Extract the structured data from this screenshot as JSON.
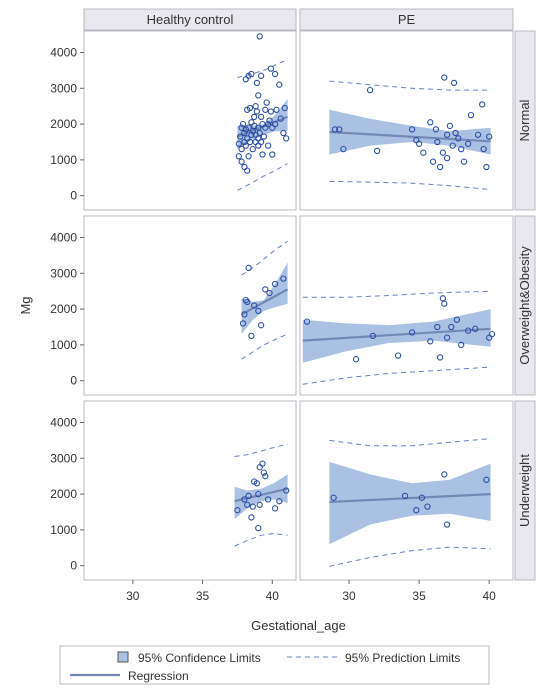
{
  "chart_data": {
    "type": "scatter",
    "layout": "panel grid (rows x columns)",
    "xlabel": "Gestational_age",
    "ylabel": "Mg",
    "xlim": [
      26.5,
      41.7
    ],
    "ylim": [
      -400,
      4600
    ],
    "x_ticks": [
      30,
      35,
      40
    ],
    "y_ticks": [
      0,
      1000,
      2000,
      3000,
      4000
    ],
    "columns": [
      "Healthy control",
      "PE"
    ],
    "rows": [
      "Normal",
      "Overweight&Obesity",
      "Underweight"
    ],
    "grid": false,
    "legend_position": "bottom",
    "colors": {
      "marker": "#2b4fa5",
      "regression": "#7488b5",
      "confidence_fill": "#aac1e3",
      "prediction": "#6680c7",
      "header_bg": "#e8e8ee",
      "panel_border": "#b9b9c3"
    },
    "legend": [
      {
        "type": "band",
        "label": "95% Confidence Limits"
      },
      {
        "type": "dashed",
        "label": "95% Prediction Limits"
      },
      {
        "type": "line",
        "label": "Regression"
      }
    ],
    "panels": [
      {
        "row": "Normal",
        "column": "Healthy control",
        "regression": {
          "x": [
            37.5,
            41.1
          ],
          "y": [
            1650,
            2200
          ]
        },
        "confidence": {
          "x": [
            37.5,
            38.5,
            39.4,
            40.2,
            41.1
          ],
          "lower": [
            1300,
            1550,
            1700,
            1800,
            1800
          ],
          "upper": [
            1950,
            1950,
            2000,
            2250,
            2700
          ]
        },
        "prediction": {
          "x": [
            37.5,
            38.5,
            39.4,
            40.2,
            41.1
          ],
          "lower": [
            150,
            350,
            550,
            700,
            900
          ],
          "upper": [
            3300,
            3400,
            3500,
            3650,
            3800
          ]
        },
        "points": [
          [
            37.6,
            1450
          ],
          [
            37.6,
            1100
          ],
          [
            37.7,
            1650
          ],
          [
            37.8,
            950
          ],
          [
            37.8,
            1900
          ],
          [
            37.8,
            1300
          ],
          [
            37.9,
            2000
          ],
          [
            38.0,
            800
          ],
          [
            38.0,
            1500
          ],
          [
            38.0,
            1750
          ],
          [
            38.1,
            1850
          ],
          [
            38.1,
            3250
          ],
          [
            38.1,
            1400
          ],
          [
            38.2,
            700
          ],
          [
            38.2,
            2400
          ],
          [
            38.2,
            1600
          ],
          [
            38.3,
            3350
          ],
          [
            38.3,
            1100
          ],
          [
            38.3,
            1900
          ],
          [
            38.4,
            1500
          ],
          [
            38.4,
            2450
          ],
          [
            38.5,
            1700
          ],
          [
            38.5,
            2050
          ],
          [
            38.5,
            3400
          ],
          [
            38.6,
            1300
          ],
          [
            38.6,
            1800
          ],
          [
            38.7,
            1950
          ],
          [
            38.7,
            2200
          ],
          [
            38.8,
            1500
          ],
          [
            38.8,
            1700
          ],
          [
            38.8,
            2500
          ],
          [
            38.9,
            2350
          ],
          [
            38.9,
            3150
          ],
          [
            39.0,
            1400
          ],
          [
            39.0,
            1600
          ],
          [
            39.0,
            1900
          ],
          [
            39.0,
            2800
          ],
          [
            39.1,
            4450
          ],
          [
            39.1,
            1750
          ],
          [
            39.2,
            1500
          ],
          [
            39.2,
            2200
          ],
          [
            39.2,
            3350
          ],
          [
            39.3,
            1150
          ],
          [
            39.3,
            2000
          ],
          [
            39.4,
            1650
          ],
          [
            39.5,
            2400
          ],
          [
            39.5,
            1900
          ],
          [
            39.6,
            2600
          ],
          [
            39.7,
            2000
          ],
          [
            39.7,
            1400
          ],
          [
            39.8,
            2100
          ],
          [
            39.9,
            2350
          ],
          [
            39.9,
            3550
          ],
          [
            40.0,
            1150
          ],
          [
            40.0,
            1900
          ],
          [
            40.2,
            2000
          ],
          [
            40.2,
            3400
          ],
          [
            40.3,
            2400
          ],
          [
            40.5,
            3100
          ],
          [
            40.6,
            2150
          ],
          [
            40.8,
            1750
          ],
          [
            40.9,
            2450
          ],
          [
            41.0,
            1600
          ]
        ]
      },
      {
        "row": "Normal",
        "column": "PE",
        "regression": {
          "x": [
            28.6,
            40.1
          ],
          "y": [
            1780,
            1520
          ]
        },
        "confidence": {
          "x": [
            28.6,
            31.5,
            34.5,
            37.2,
            40.1
          ],
          "lower": [
            1150,
            1400,
            1500,
            1400,
            1150
          ],
          "upper": [
            2400,
            2150,
            1950,
            1800,
            1900
          ]
        },
        "prediction": {
          "x": [
            28.6,
            31.5,
            34.5,
            37.2,
            40.1
          ],
          "lower": [
            400,
            380,
            350,
            280,
            170
          ],
          "upper": [
            3200,
            3100,
            3000,
            2950,
            2950
          ]
        },
        "points": [
          [
            29.0,
            1850
          ],
          [
            29.3,
            1850
          ],
          [
            29.6,
            1300
          ],
          [
            31.5,
            2950
          ],
          [
            32.0,
            1250
          ],
          [
            34.5,
            1850
          ],
          [
            34.8,
            1550
          ],
          [
            35.0,
            1450
          ],
          [
            35.3,
            1200
          ],
          [
            35.8,
            2050
          ],
          [
            36.0,
            950
          ],
          [
            36.2,
            1850
          ],
          [
            36.3,
            1500
          ],
          [
            36.5,
            800
          ],
          [
            36.7,
            1200
          ],
          [
            36.8,
            3300
          ],
          [
            37.0,
            1700
          ],
          [
            37.0,
            1050
          ],
          [
            37.2,
            1950
          ],
          [
            37.4,
            1400
          ],
          [
            37.5,
            3150
          ],
          [
            37.6,
            1750
          ],
          [
            37.8,
            1600
          ],
          [
            38.0,
            1300
          ],
          [
            38.2,
            950
          ],
          [
            38.5,
            1450
          ],
          [
            38.7,
            2250
          ],
          [
            39.2,
            1700
          ],
          [
            39.5,
            2550
          ],
          [
            39.6,
            1300
          ],
          [
            39.8,
            800
          ],
          [
            40.0,
            1650
          ]
        ]
      },
      {
        "row": "Overweight&Obesity",
        "column": "Healthy control",
        "regression": {
          "x": [
            37.8,
            41.1
          ],
          "y": [
            1850,
            2550
          ]
        },
        "confidence": {
          "x": [
            37.8,
            38.6,
            39.4,
            40.2,
            41.1
          ],
          "lower": [
            1300,
            1700,
            1950,
            2050,
            2150
          ],
          "upper": [
            2300,
            2200,
            2250,
            2700,
            3300
          ]
        },
        "prediction": {
          "x": [
            37.8,
            38.6,
            39.4,
            40.2,
            41.1
          ],
          "lower": [
            600,
            800,
            1000,
            1150,
            1300
          ],
          "upper": [
            2950,
            3150,
            3400,
            3650,
            3900
          ]
        },
        "points": [
          [
            37.9,
            1600
          ],
          [
            38.0,
            1850
          ],
          [
            38.1,
            2250
          ],
          [
            38.2,
            2200
          ],
          [
            38.3,
            3150
          ],
          [
            38.5,
            1250
          ],
          [
            38.7,
            2100
          ],
          [
            39.0,
            1950
          ],
          [
            39.2,
            1550
          ],
          [
            39.5,
            2550
          ],
          [
            39.8,
            2450
          ],
          [
            40.2,
            2700
          ],
          [
            40.8,
            2850
          ]
        ]
      },
      {
        "row": "Overweight&Obesity",
        "column": "PE",
        "regression": {
          "x": [
            26.7,
            40.1
          ],
          "y": [
            1120,
            1450
          ]
        },
        "confidence": {
          "x": [
            26.7,
            29.8,
            32.8,
            36.0,
            40.1
          ],
          "lower": [
            500,
            820,
            1050,
            1120,
            950
          ],
          "upper": [
            1700,
            1600,
            1550,
            1650,
            2000
          ]
        },
        "prediction": {
          "x": [
            26.7,
            29.8,
            32.8,
            36.0,
            40.1
          ],
          "lower": [
            -100,
            80,
            200,
            280,
            380
          ],
          "upper": [
            2330,
            2330,
            2380,
            2450,
            2500
          ]
        },
        "points": [
          [
            27.0,
            1650
          ],
          [
            30.5,
            600
          ],
          [
            31.7,
            1250
          ],
          [
            33.5,
            700
          ],
          [
            34.5,
            1350
          ],
          [
            35.8,
            1100
          ],
          [
            36.3,
            1500
          ],
          [
            36.5,
            650
          ],
          [
            36.7,
            2300
          ],
          [
            36.8,
            2150
          ],
          [
            37.0,
            1200
          ],
          [
            37.3,
            1500
          ],
          [
            37.7,
            1700
          ],
          [
            38.0,
            1000
          ],
          [
            38.5,
            1400
          ],
          [
            39.0,
            1450
          ],
          [
            40.0,
            1200
          ],
          [
            40.2,
            1300
          ]
        ]
      },
      {
        "row": "Underweight",
        "column": "Healthy control",
        "regression": {
          "x": [
            37.3,
            41.1
          ],
          "y": [
            1800,
            2150
          ]
        },
        "confidence": {
          "x": [
            37.3,
            38.2,
            39.2,
            40.1,
            41.1
          ],
          "lower": [
            1300,
            1600,
            1800,
            1850,
            1750
          ],
          "upper": [
            2200,
            2100,
            2150,
            2300,
            2550
          ]
        },
        "prediction": {
          "x": [
            37.3,
            38.2,
            39.2,
            40.1,
            41.1
          ],
          "lower": [
            550,
            700,
            850,
            900,
            850
          ],
          "upper": [
            3050,
            3100,
            3200,
            3300,
            3400
          ]
        },
        "points": [
          [
            37.5,
            1550
          ],
          [
            38.0,
            1850
          ],
          [
            38.2,
            1700
          ],
          [
            38.3,
            1950
          ],
          [
            38.5,
            1350
          ],
          [
            38.6,
            1650
          ],
          [
            38.7,
            2350
          ],
          [
            38.9,
            2300
          ],
          [
            39.0,
            1050
          ],
          [
            39.0,
            2000
          ],
          [
            39.1,
            1700
          ],
          [
            39.1,
            2750
          ],
          [
            39.3,
            2850
          ],
          [
            39.4,
            2600
          ],
          [
            39.5,
            2500
          ],
          [
            39.7,
            1850
          ],
          [
            40.2,
            1600
          ],
          [
            40.5,
            1800
          ],
          [
            41.0,
            2100
          ]
        ]
      },
      {
        "row": "Underweight",
        "column": "PE",
        "regression": {
          "x": [
            28.6,
            40.1
          ],
          "y": [
            1780,
            2000
          ]
        },
        "confidence": {
          "x": [
            28.6,
            31.5,
            34.5,
            37.2,
            40.1
          ],
          "lower": [
            600,
            1150,
            1400,
            1450,
            1250
          ],
          "upper": [
            2900,
            2550,
            2300,
            2400,
            2850
          ]
        },
        "prediction": {
          "x": [
            28.6,
            31.5,
            34.5,
            37.2,
            40.1
          ],
          "lower": [
            -20,
            230,
            420,
            520,
            470
          ],
          "upper": [
            3500,
            3350,
            3350,
            3450,
            3550
          ]
        },
        "points": [
          [
            28.9,
            1900
          ],
          [
            34.0,
            1950
          ],
          [
            34.8,
            1550
          ],
          [
            35.2,
            1900
          ],
          [
            35.6,
            1650
          ],
          [
            36.8,
            2550
          ],
          [
            37.0,
            1150
          ],
          [
            39.8,
            2400
          ]
        ]
      }
    ]
  }
}
